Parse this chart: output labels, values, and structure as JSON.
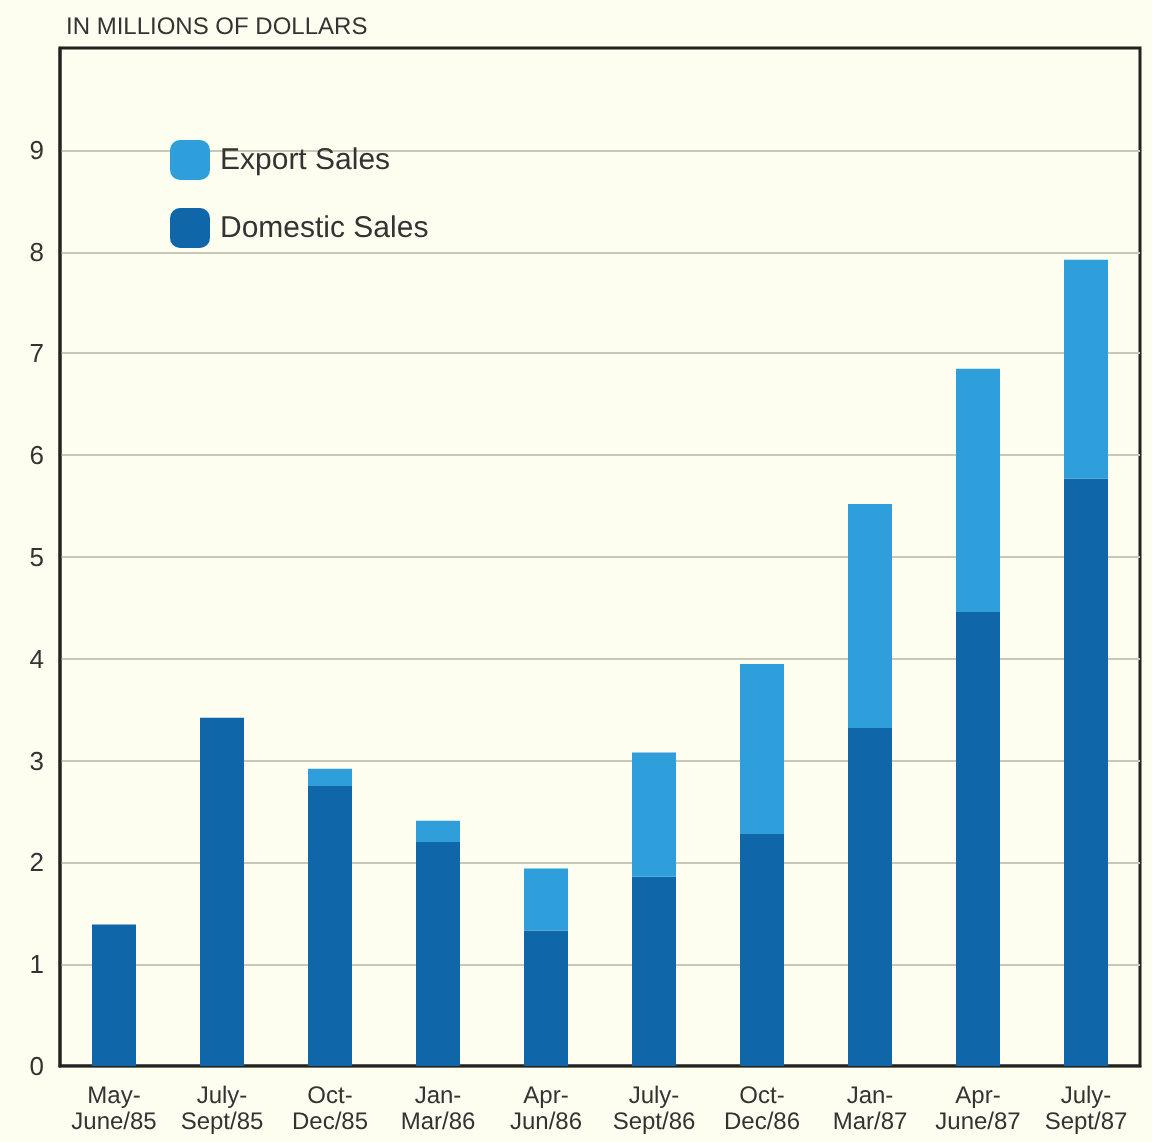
{
  "chart_data": {
    "type": "bar",
    "title": "IN MILLIONS OF DOLLARS",
    "stacked": true,
    "categories": [
      "May-June/85",
      "July-Sept/85",
      "Oct-Dec/85",
      "Jan-Mar/86",
      "Apr-Jun/86",
      "July-Sept/86",
      "Oct-Dec/86",
      "Jan-Mar/87",
      "Apr-June/87",
      "July-Sept/87"
    ],
    "series": [
      {
        "name": "Domestic Sales",
        "color": "#0f67aa",
        "values": [
          1.39,
          3.42,
          2.75,
          2.2,
          1.33,
          1.86,
          2.28,
          3.32,
          4.46,
          5.77
        ]
      },
      {
        "name": "Export Sales",
        "color": "#2f9fdc",
        "values": [
          0,
          0,
          0.17,
          0.21,
          0.61,
          1.22,
          1.67,
          2.2,
          2.39,
          2.15
        ]
      }
    ],
    "ylim": [
      0,
      10
    ],
    "yticks": [
      0,
      1,
      2,
      3,
      4,
      5,
      6,
      7,
      8,
      9
    ],
    "grid": "y",
    "legend": "top left"
  }
}
